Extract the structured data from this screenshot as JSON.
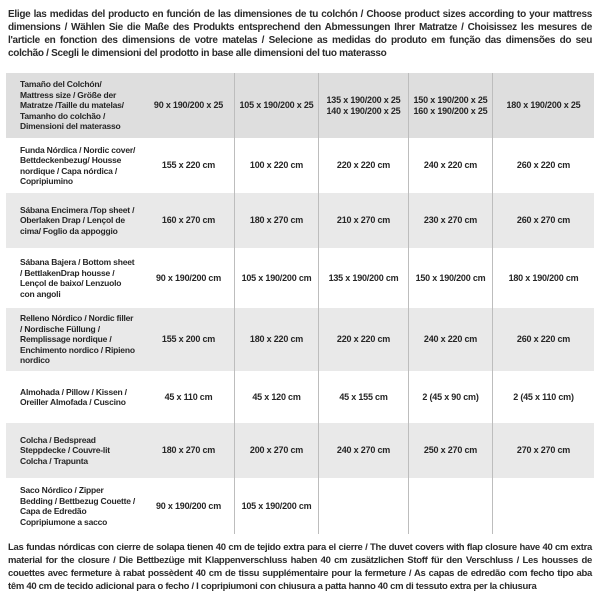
{
  "intro": "Elige las medidas del producto en función de las dimensiones de tu colchón / Choose product sizes according to your mattress dimensions / Wählen Sie die Maße des Produkts entsprechend den Abmessungen Ihrer Matratze / Choisissez les mesures de l'article en fonction des dimensions de votre matelas / Selecione as medidas do produto em função das dimensões do seu colchão / Scegli le dimensioni del prodotto in base alle dimensioni del tuo materasso",
  "table": {
    "header": {
      "label": "Tamaño del Colchón/ Mattress size / Größe der Matratze /Taille du matelas/ Tamanho do colchão / Dimensioni del materasso",
      "columns": [
        "90 x 190/200 x 25",
        "105 x 190/200 x 25",
        "135 x 190/200 x 25\n140 x 190/200 x 25",
        "150 x 190/200 x 25\n160 x 190/200 x 25",
        "180 x 190/200 x 25"
      ]
    },
    "rows": [
      {
        "label": "Funda Nórdica / Nordic cover/ Bettdeckenbezug/ Housse nordique / Capa nórdica / Copripiumino",
        "values": [
          "155 x 220 cm",
          "100 x 220 cm",
          "220 x 220 cm",
          "240 x 220 cm",
          "260 x 220 cm"
        ]
      },
      {
        "label": "Sábana Encimera /Top sheet / Oberlaken Drap / Lençol de cima/ Foglio da appoggio",
        "values": [
          "160 x 270 cm",
          "180 x 270 cm",
          "210 x 270 cm",
          "230 x 270 cm",
          "260 x 270 cm"
        ]
      },
      {
        "label": "Sábana Bajera / Bottom sheet / BettlakenDrap housse / Lençol de baixo/ Lenzuolo con angoli",
        "values": [
          "90 x 190/200 cm",
          "105 x 190/200 cm",
          "135 x 190/200 cm",
          "150 x 190/200 cm",
          "180 x 190/200 cm"
        ]
      },
      {
        "label": "Relleno Nórdico / Nordic filler / Nordische Füllung / Remplissage nordique / Enchimento nordico / Ripieno nordico",
        "values": [
          "155 x 200 cm",
          "180 x 220 cm",
          "220 x 220 cm",
          "240 x 220 cm",
          "260 x 220 cm"
        ]
      },
      {
        "label": "Almohada / Pillow / Kissen / Oreiller Almofada / Cuscino",
        "values": [
          "45 x 110 cm",
          "45 x 120 cm",
          "45 x 155 cm",
          "2 (45 x 90 cm)",
          "2 (45 x 110 cm)"
        ]
      },
      {
        "label": "Colcha / Bedspread Steppdecke / Couvre-lit Colcha / Trapunta",
        "values": [
          "180 x 270 cm",
          "200 x 270 cm",
          "240 x 270 cm",
          "250 x 270 cm",
          "270 x 270 cm"
        ]
      },
      {
        "label": "Saco Nórdico / Zipper Bedding / Bettbezug Couette / Capa de Edredão Copripiumone a sacco",
        "values": [
          "90 x 190/200 cm",
          "105 x 190/200 cm",
          "",
          "",
          ""
        ]
      }
    ]
  },
  "footnote": "Las fundas nórdicas con cierre de solapa tienen 40 cm de tejido extra para el cierre / The duvet covers with flap closure have 40 cm extra material for the closure / Die Bettbezüge mit Klappenverschluss haben 40 cm zusätzlichen Stoff für den Verschluss / Les housses de couettes avec fermeture à rabat possèdent 40 cm de tissu supplémentaire pour la fermeture / As capas de edredão com fecho tipo aba têm 40 cm de tecido adicional para o fecho / I copripiumoni con chiusura a patta hanno 40 cm di tessuto extra per la chiusura",
  "colors": {
    "header_row_bg": "#dedede",
    "alt_row_bg": "#e9e9e9",
    "row_bg": "#ffffff",
    "divider": "#bdbdbd",
    "text": "#262626"
  }
}
